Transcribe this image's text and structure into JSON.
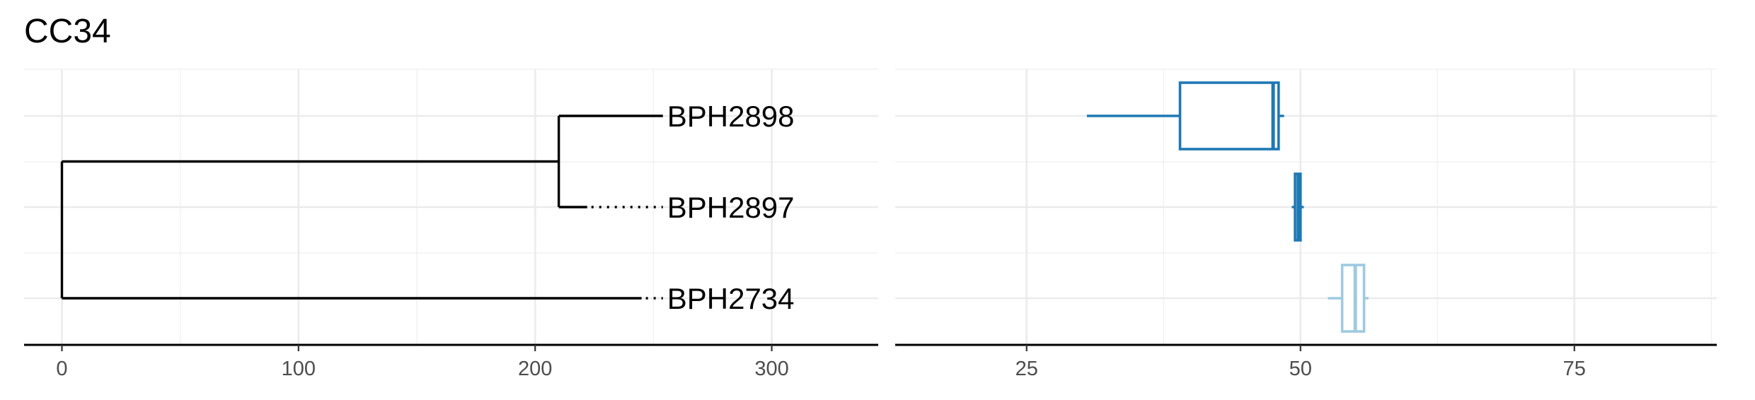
{
  "title": "CC34",
  "chart_data": [
    {
      "type": "tree",
      "title": "CC34",
      "xlabel": "",
      "ylabel": "",
      "xlim": [
        -16,
        345
      ],
      "x_ticks": [
        0,
        100,
        200,
        300
      ],
      "x_tick_labels": [
        "0",
        "100",
        "200",
        "300"
      ],
      "grid": true,
      "tips": [
        {
          "label": "BPH2898",
          "length": 254,
          "dotted_to": 254
        },
        {
          "label": "BPH2897",
          "length": 222,
          "dotted_to": 254
        },
        {
          "label": "BPH2734",
          "length": 245,
          "dotted_to": 254
        }
      ],
      "nodes": [
        {
          "name": "root",
          "x": 0,
          "children": [
            "inner",
            "BPH2734"
          ]
        },
        {
          "name": "inner",
          "x": 210,
          "children": [
            "BPH2898",
            "BPH2897"
          ]
        }
      ]
    },
    {
      "type": "boxplot",
      "xlabel": "",
      "ylabel": "",
      "xlim": [
        13,
        88
      ],
      "x_ticks": [
        25,
        50,
        75
      ],
      "x_tick_labels": [
        "25",
        "50",
        "75"
      ],
      "grid": true,
      "series": [
        {
          "category": "BPH2898",
          "color": "#1f78b4",
          "min": 30.5,
          "q1": 39,
          "median": 47.5,
          "q3": 48,
          "max": 48.5
        },
        {
          "category": "BPH2897",
          "color": "#1f78b4",
          "min": 49.2,
          "q1": 49.5,
          "median": 49.8,
          "q3": 50,
          "max": 50.3
        },
        {
          "category": "BPH2734",
          "color": "#9ecae1",
          "min": 52.5,
          "q1": 53.8,
          "median": 55,
          "q3": 55.8,
          "max": 56.2
        }
      ]
    }
  ]
}
